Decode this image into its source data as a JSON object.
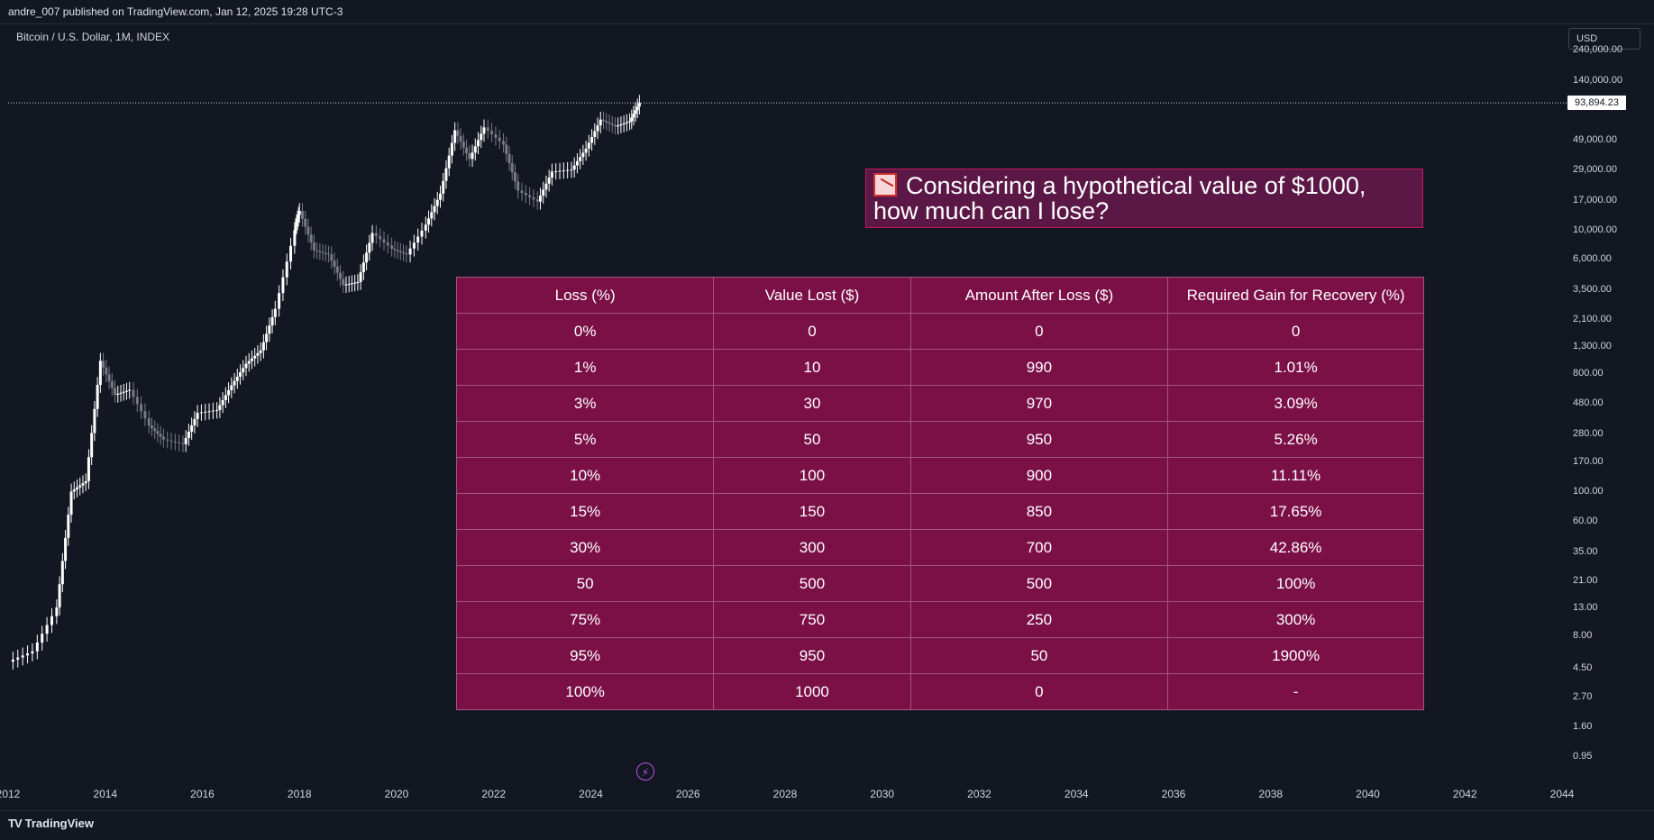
{
  "header": {
    "published": "andre_007 published on TradingView.com, Jan 12, 2025 19:28 UTC-3"
  },
  "symbol": {
    "title": "Bitcoin / U.S. Dollar, 1M, INDEX"
  },
  "currency_button": "USD",
  "current_price": "93,894.23",
  "footer": {
    "brand": "TradingView"
  },
  "title_box": {
    "line1": "Considering a hypothetical value of $1000,",
    "line2": "how much can I lose?",
    "icon": "chart-decreasing-icon"
  },
  "table": {
    "headers": [
      "Loss (%)",
      "Value Lost ($)",
      "Amount After Loss ($)",
      "Required Gain for Recovery (%)"
    ],
    "rows": [
      [
        "0%",
        "0",
        "0",
        "0"
      ],
      [
        "1%",
        "10",
        "990",
        "1.01%"
      ],
      [
        "3%",
        "30",
        "970",
        "3.09%"
      ],
      [
        "5%",
        "50",
        "950",
        "5.26%"
      ],
      [
        "10%",
        "100",
        "900",
        "11.11%"
      ],
      [
        "15%",
        "150",
        "850",
        "17.65%"
      ],
      [
        "30%",
        "300",
        "700",
        "42.86%"
      ],
      [
        "50",
        "500",
        "500",
        "100%"
      ],
      [
        "75%",
        "750",
        "250",
        "300%"
      ],
      [
        "95%",
        "950",
        "50",
        "1900%"
      ],
      [
        "100%",
        "1000",
        "0",
        "-"
      ]
    ]
  },
  "chart_data": {
    "type": "candlestick",
    "title": "Bitcoin / U.S. Dollar, 1M, INDEX",
    "scale": "log",
    "ylim": [
      0.7,
      260000
    ],
    "xlim": [
      2012.0,
      2044.0
    ],
    "y_ticks": [
      "240,000.00",
      "140,000.00",
      "49,000.00",
      "29,000.00",
      "17,000.00",
      "10,000.00",
      "6,000.00",
      "3,500.00",
      "2,100.00",
      "1,300.00",
      "800.00",
      "480.00",
      "280.00",
      "170.00",
      "100.00",
      "60.00",
      "35.00",
      "21.00",
      "13.00",
      "8.00",
      "4.50",
      "2.70",
      "1.60",
      "0.95"
    ],
    "y_tick_values": [
      240000,
      140000,
      49000,
      29000,
      17000,
      10000,
      6000,
      3500,
      2100,
      1300,
      800,
      480,
      280,
      170,
      100,
      60,
      35,
      21,
      13,
      8,
      4.5,
      2.7,
      1.6,
      0.95
    ],
    "x_ticks": [
      "2012",
      "2014",
      "2016",
      "2018",
      "2020",
      "2022",
      "2024",
      "2026",
      "2028",
      "2030",
      "2032",
      "2034",
      "2036",
      "2038",
      "2040",
      "2042",
      "2044"
    ],
    "x_tick_values": [
      2012,
      2014,
      2016,
      2018,
      2020,
      2022,
      2024,
      2026,
      2028,
      2030,
      2032,
      2034,
      2036,
      2038,
      2040,
      2042,
      2044
    ],
    "series": [
      {
        "name": "close",
        "x": [
          2012.0,
          2012.5,
          2013.0,
          2013.3,
          2013.6,
          2013.9,
          2014.2,
          2014.5,
          2014.9,
          2015.2,
          2015.6,
          2015.9,
          2016.3,
          2016.6,
          2016.9,
          2017.2,
          2017.5,
          2017.9,
          2018.0,
          2018.3,
          2018.6,
          2018.9,
          2019.2,
          2019.5,
          2019.9,
          2020.2,
          2020.6,
          2020.9,
          2021.2,
          2021.5,
          2021.8,
          2022.2,
          2022.5,
          2022.9,
          2023.2,
          2023.6,
          2023.9,
          2024.2,
          2024.5,
          2024.8,
          2025.0
        ],
        "values": [
          5,
          6,
          13,
          100,
          120,
          1000,
          550,
          600,
          320,
          250,
          230,
          400,
          420,
          650,
          950,
          1200,
          2500,
          10000,
          14000,
          7000,
          6500,
          3800,
          4000,
          9500,
          7200,
          6500,
          11000,
          19000,
          58000,
          35000,
          61000,
          45000,
          20000,
          16500,
          28000,
          29000,
          42000,
          70000,
          62000,
          68000,
          94000
        ]
      }
    ],
    "price_line": 93894.23
  }
}
